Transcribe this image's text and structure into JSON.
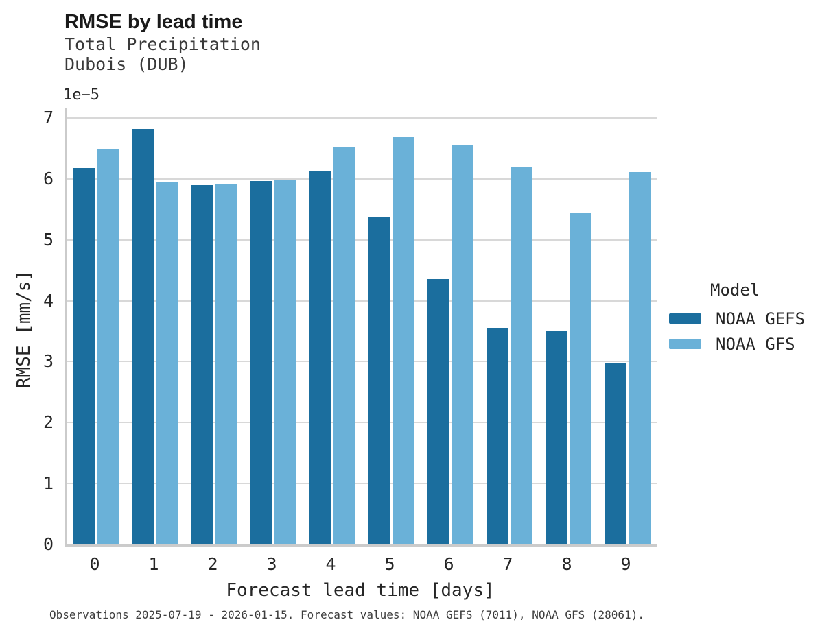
{
  "chart_data": {
    "type": "bar",
    "title": "RMSE by lead time",
    "subtitle_line1": "Total Precipitation",
    "subtitle_line2": "Dubois (DUB)",
    "y_offset_label": "1e−5",
    "xlabel": "Forecast lead time [days]",
    "ylabel": "RMSE [mm/s]",
    "categories": [
      "0",
      "1",
      "2",
      "3",
      "4",
      "5",
      "6",
      "7",
      "8",
      "9"
    ],
    "series": [
      {
        "name": "NOAA GEFS",
        "color": "#1b6e9e",
        "values": [
          6.18,
          6.82,
          5.9,
          5.97,
          6.14,
          5.38,
          4.36,
          3.56,
          3.51,
          2.98
        ]
      },
      {
        "name": "NOAA GFS",
        "color": "#6ab1d8",
        "values": [
          6.5,
          5.95,
          5.92,
          5.98,
          6.53,
          6.69,
          6.55,
          6.19,
          5.44,
          6.11
        ]
      }
    ],
    "ylim": [
      0,
      7.17
    ],
    "yticks": [
      0,
      1,
      2,
      3,
      4,
      5,
      6,
      7
    ],
    "grid": "horizontal",
    "legend_title": "Model",
    "legend_position": "right",
    "caption": "Observations 2025-07-19 - 2026-01-15. Forecast values: NOAA GEFS (7011), NOAA GFS (28061)."
  },
  "colors": {
    "series_dark": "#1b6e9e",
    "series_light": "#6ab1d8",
    "gridline": "#d8d8d8",
    "spine": "#cbcbcb"
  }
}
